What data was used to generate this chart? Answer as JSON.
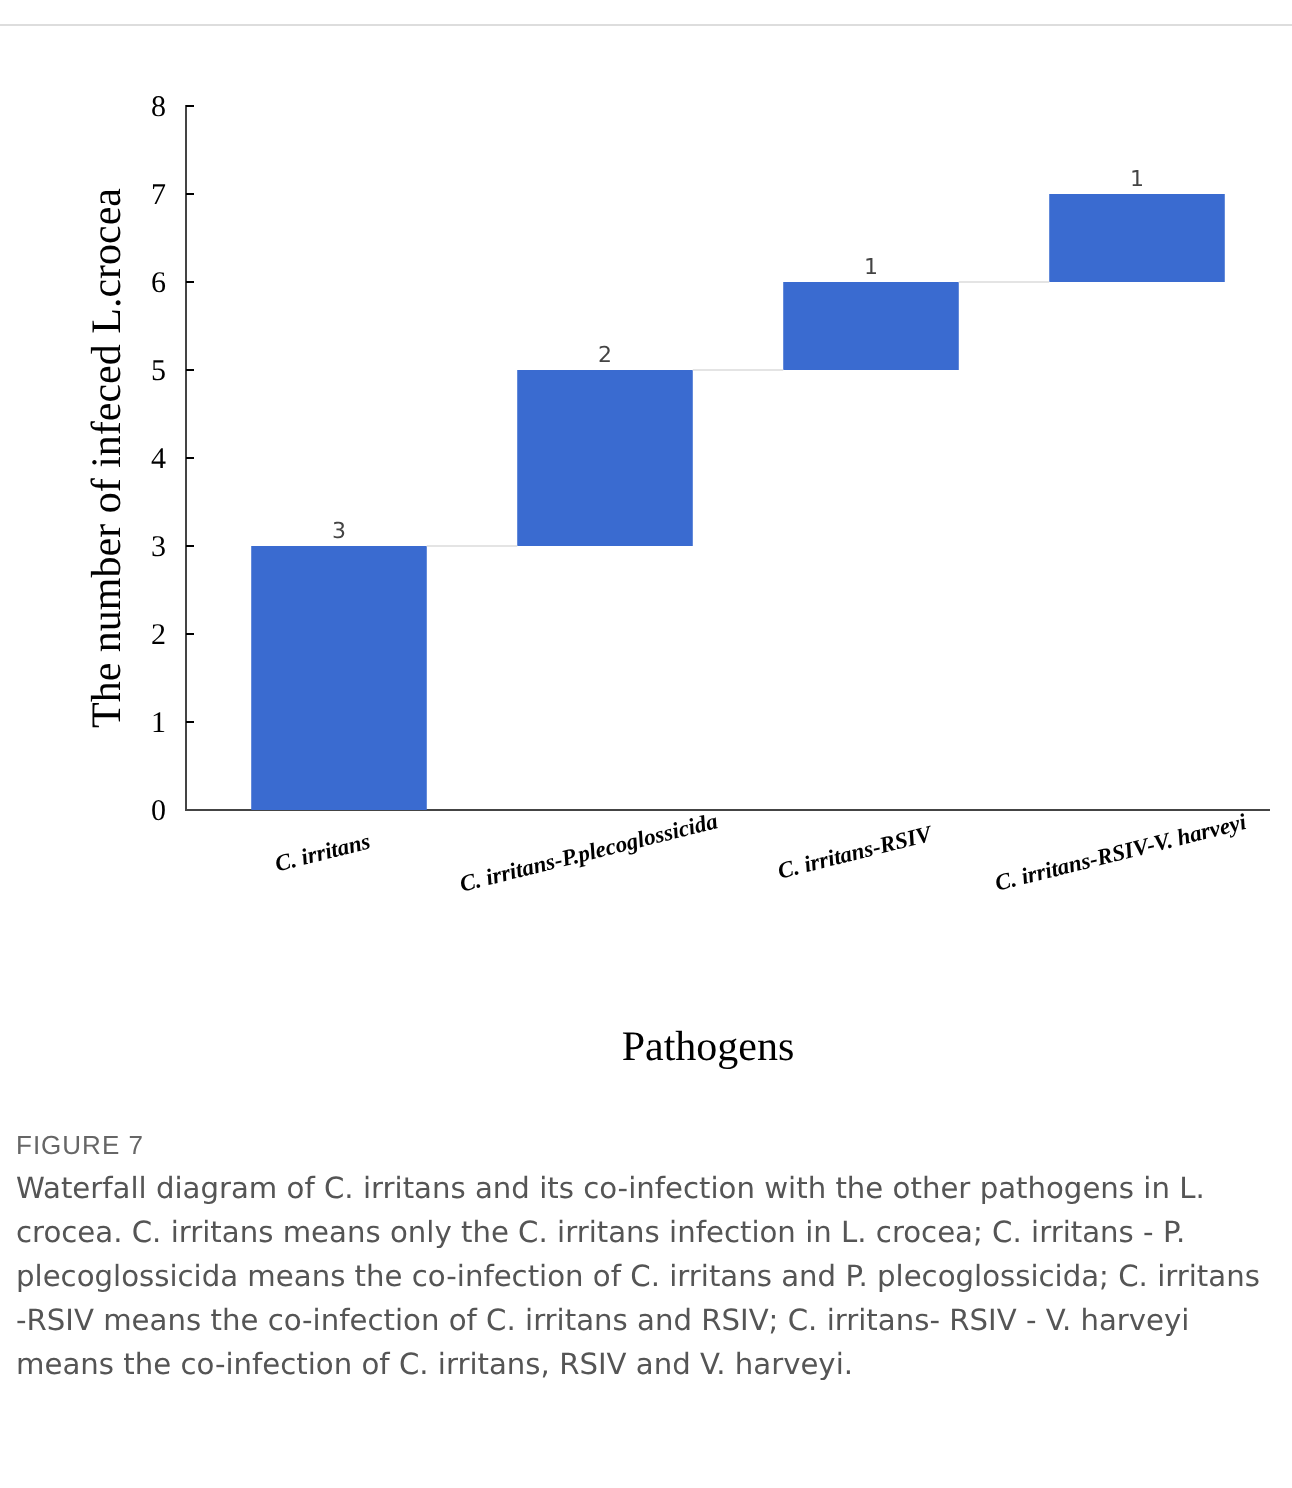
{
  "chart_data": {
    "type": "bar",
    "xlabel": "Pathogens",
    "ylabel": "The number of  infeced L.crocea",
    "categories": [
      "C. irritans",
      "C. irritans-P.plecoglossicida",
      "C. irritans-RSIV",
      "C. irritans-RSIV-V. harveyi"
    ],
    "values": [
      3,
      2,
      1,
      1
    ],
    "base": [
      0,
      3,
      5,
      6
    ],
    "color": "#3a6bd0",
    "data_labels": true,
    "ylim": [
      0,
      8
    ],
    "yticks": [
      0,
      1,
      2,
      3,
      4,
      5,
      6,
      7,
      8
    ],
    "grid": false,
    "annotations": [
      "FIGURE 7",
      "Waterfall diagram of C. irritans and its co-infection with the other pathogens in L. crocea. C. irritans means only the C. irritans infection in L. crocea; C. irritans - P. plecoglossicida means the co-infection of C. irritans and P. plecoglossicida; C. irritans -RSIV means the co-infection of C. irritans and RSIV; C. irritans- RSIV - V. harveyi means the co-infection of C. irritans, RSIV and V. harveyi."
    ]
  }
}
